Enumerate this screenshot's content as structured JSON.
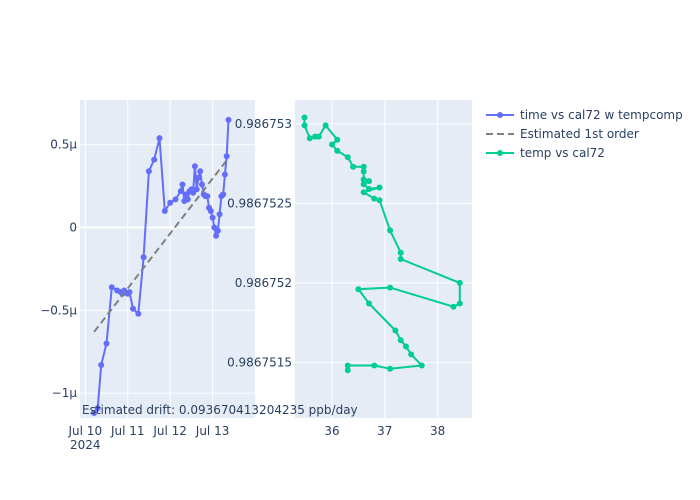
{
  "chart_data": [
    {
      "type": "line",
      "x_axis": {
        "type": "date",
        "range": [
          "2024-07-09T21:00",
          "2024-07-14T00:00"
        ],
        "ticks": [
          {
            "value": "2024-07-10T00:00",
            "label": "Jul 10",
            "sublabel": "2024"
          },
          {
            "value": "2024-07-11T00:00",
            "label": "Jul 11"
          },
          {
            "value": "2024-07-12T00:00",
            "label": "Jul 12"
          },
          {
            "value": "2024-07-13T00:00",
            "label": "Jul 13"
          }
        ]
      },
      "y_axis": {
        "range": [
          -1.15e-06,
          7.7e-07
        ],
        "ticks": [
          {
            "value": 5e-07,
            "label": "0.5μ"
          },
          {
            "value": 0,
            "label": "0"
          },
          {
            "value": -5e-07,
            "label": "−0.5μ"
          },
          {
            "value": -1e-06,
            "label": "−1μ"
          }
        ]
      },
      "grid": true,
      "series": [
        {
          "name": "time vs cal72 w tempcomp",
          "style": "lines+markers",
          "color": "#636efa",
          "points": [
            [
              "2024-07-10T05:00",
              -1.12e-06
            ],
            [
              "2024-07-10T07:00",
              -1.09e-06
            ],
            [
              "2024-07-10T09:00",
              -8.3e-07
            ],
            [
              "2024-07-10T12:00",
              -7e-07
            ],
            [
              "2024-07-10T15:00",
              -3.6e-07
            ],
            [
              "2024-07-10T18:00",
              -3.8e-07
            ],
            [
              "2024-07-10T20:00",
              -3.9e-07
            ],
            [
              "2024-07-10T21:00",
              -4e-07
            ],
            [
              "2024-07-10T22:00",
              -3.8e-07
            ],
            [
              "2024-07-11T00:00",
              -4e-07
            ],
            [
              "2024-07-11T01:00",
              -3.9e-07
            ],
            [
              "2024-07-11T03:00",
              -4.9e-07
            ],
            [
              "2024-07-11T06:00",
              -5.2e-07
            ],
            [
              "2024-07-11T09:00",
              -1.8e-07
            ],
            [
              "2024-07-11T12:00",
              3.4e-07
            ],
            [
              "2024-07-11T15:00",
              4.1e-07
            ],
            [
              "2024-07-11T18:00",
              5.4e-07
            ],
            [
              "2024-07-11T21:00",
              1e-07
            ],
            [
              "2024-07-12T00:00",
              1.5e-07
            ],
            [
              "2024-07-12T03:00",
              1.7e-07
            ],
            [
              "2024-07-12T06:00",
              2.2e-07
            ],
            [
              "2024-07-12T07:00",
              2.6e-07
            ],
            [
              "2024-07-12T08:00",
              1.6e-07
            ],
            [
              "2024-07-12T09:00",
              2e-07
            ],
            [
              "2024-07-12T10:00",
              1.7e-07
            ],
            [
              "2024-07-12T11:00",
              2.2e-07
            ],
            [
              "2024-07-12T12:00",
              2.3e-07
            ],
            [
              "2024-07-12T13:00",
              2.1e-07
            ],
            [
              "2024-07-12T14:00",
              3.7e-07
            ],
            [
              "2024-07-12T15:00",
              2.3e-07
            ],
            [
              "2024-07-12T16:00",
              3e-07
            ],
            [
              "2024-07-12T17:00",
              3.4e-07
            ],
            [
              "2024-07-12T18:00",
              2.6e-07
            ],
            [
              "2024-07-12T19:00",
              2e-07
            ],
            [
              "2024-07-12T20:00",
              1.9e-07
            ],
            [
              "2024-07-12T21:00",
              1.9e-07
            ],
            [
              "2024-07-12T22:00",
              1.2e-07
            ],
            [
              "2024-07-12T23:00",
              1e-07
            ],
            [
              "2024-07-13T00:00",
              6e-08
            ],
            [
              "2024-07-13T01:00",
              0.0
            ],
            [
              "2024-07-13T02:00",
              -5e-08
            ],
            [
              "2024-07-13T03:00",
              -2e-08
            ],
            [
              "2024-07-13T04:00",
              8e-08
            ],
            [
              "2024-07-13T05:00",
              1.9e-07
            ],
            [
              "2024-07-13T06:00",
              2e-07
            ],
            [
              "2024-07-13T07:00",
              3.2e-07
            ],
            [
              "2024-07-13T08:00",
              4.3e-07
            ],
            [
              "2024-07-13T09:00",
              6.5e-07
            ]
          ]
        },
        {
          "name": "Estimated 1st order",
          "style": "dash",
          "color": "#808080",
          "points": [
            [
              "2024-07-10T05:00",
              -6.3e-07
            ],
            [
              "2024-07-13T09:00",
              4.2e-07
            ]
          ]
        }
      ],
      "annotation": "Estimated drift:  0.093670413204235 ppb/day"
    },
    {
      "type": "line",
      "x_axis": {
        "range": [
          35.3,
          38.65
        ],
        "ticks": [
          {
            "value": 36,
            "label": "36"
          },
          {
            "value": 37,
            "label": "37"
          },
          {
            "value": 38,
            "label": "38"
          }
        ]
      },
      "y_axis": {
        "range": [
          0.98675115,
          0.98675315
        ],
        "ticks": [
          {
            "value": 0.986753,
            "label": "0.986753"
          },
          {
            "value": 0.9867525,
            "label": "0.9867525"
          },
          {
            "value": 0.986752,
            "label": "0.986752"
          },
          {
            "value": 0.9867515,
            "label": "0.9867515"
          }
        ]
      },
      "grid": true,
      "series": [
        {
          "name": "temp vs cal72",
          "style": "lines+markers",
          "color": "#00cc96",
          "points": [
            [
              35.48,
              0.98675304
            ],
            [
              35.48,
              0.98675299
            ],
            [
              35.58,
              0.98675291
            ],
            [
              35.68,
              0.98675292
            ],
            [
              35.75,
              0.98675292
            ],
            [
              35.88,
              0.98675299
            ],
            [
              36.1,
              0.9867529
            ],
            [
              36.0,
              0.98675287
            ],
            [
              36.1,
              0.98675283
            ],
            [
              36.3,
              0.98675279
            ],
            [
              36.4,
              0.98675273
            ],
            [
              36.6,
              0.98675273
            ],
            [
              36.6,
              0.9867527
            ],
            [
              36.6,
              0.98675265
            ],
            [
              36.7,
              0.98675264
            ],
            [
              36.6,
              0.98675262
            ],
            [
              36.7,
              0.98675259
            ],
            [
              36.9,
              0.9867526
            ],
            [
              36.6,
              0.98675257
            ],
            [
              36.8,
              0.98675253
            ],
            [
              36.9,
              0.98675252
            ],
            [
              37.1,
              0.98675233
            ],
            [
              37.3,
              0.98675219
            ],
            [
              37.3,
              0.98675215
            ],
            [
              38.42,
              0.986752
            ],
            [
              38.42,
              0.98675187
            ],
            [
              38.3,
              0.98675185
            ],
            [
              37.1,
              0.98675197
            ],
            [
              36.5,
              0.98675196
            ],
            [
              36.7,
              0.98675187
            ],
            [
              37.2,
              0.9867517
            ],
            [
              37.3,
              0.98675164
            ],
            [
              37.4,
              0.9867516
            ],
            [
              37.5,
              0.98675155
            ],
            [
              37.7,
              0.98675148
            ],
            [
              37.1,
              0.98675146
            ],
            [
              36.8,
              0.98675148
            ],
            [
              36.3,
              0.98675148
            ],
            [
              36.3,
              0.98675145
            ]
          ]
        }
      ]
    }
  ]
}
